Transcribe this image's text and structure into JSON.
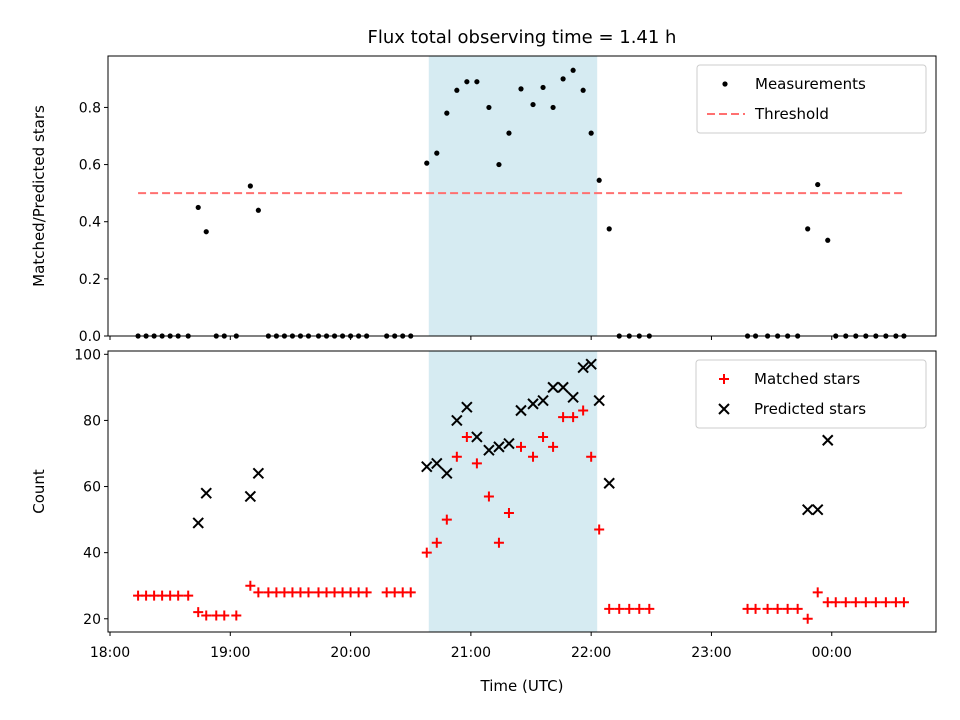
{
  "chart_data": [
    {
      "type": "scatter",
      "title": "Flux total observing time = 1.41 h",
      "ylabel": "Matched/Predicted stars",
      "xlabel": "",
      "ylim": [
        0,
        0.98
      ],
      "xlim": [
        "17:59",
        "24:52"
      ],
      "yticks": [
        0.0,
        0.2,
        0.4,
        0.6,
        0.8
      ],
      "ytick_labels": [
        "0.0",
        "0.2",
        "0.4",
        "0.6",
        "0.8"
      ],
      "shaded_interval": {
        "from": "20:39",
        "to": "22:03",
        "color": "#add8e6"
      },
      "legend": {
        "position": "top-right",
        "entries": [
          "Measurements",
          "Threshold"
        ]
      },
      "series": [
        {
          "name": "Measurements",
          "color": "#000000",
          "marker": "dot",
          "points": [
            [
              "18:14",
              0
            ],
            [
              "18:18",
              0
            ],
            [
              "18:22",
              0
            ],
            [
              "18:26",
              0
            ],
            [
              "18:30",
              0
            ],
            [
              "18:34",
              0
            ],
            [
              "18:39",
              0
            ],
            [
              "18:44",
              0.45
            ],
            [
              "18:48",
              0.365
            ],
            [
              "18:53",
              0
            ],
            [
              "18:57",
              0
            ],
            [
              "19:03",
              0
            ],
            [
              "19:10",
              0.525
            ],
            [
              "19:14",
              0.44
            ],
            [
              "19:19",
              0
            ],
            [
              "19:23",
              0
            ],
            [
              "19:27",
              0
            ],
            [
              "19:31",
              0
            ],
            [
              "19:35",
              0
            ],
            [
              "19:39",
              0
            ],
            [
              "19:44",
              0
            ],
            [
              "19:48",
              0
            ],
            [
              "19:52",
              0
            ],
            [
              "19:56",
              0
            ],
            [
              "20:00",
              0
            ],
            [
              "20:04",
              0
            ],
            [
              "20:08",
              0
            ],
            [
              "20:18",
              0
            ],
            [
              "20:22",
              0
            ],
            [
              "20:26",
              0
            ],
            [
              "20:30",
              0
            ],
            [
              "20:38",
              0.605
            ],
            [
              "20:43",
              0.64
            ],
            [
              "20:48",
              0.78
            ],
            [
              "20:53",
              0.86
            ],
            [
              "20:58",
              0.89
            ],
            [
              "21:03",
              0.89
            ],
            [
              "21:09",
              0.8
            ],
            [
              "21:14",
              0.6
            ],
            [
              "21:19",
              0.71
            ],
            [
              "21:25",
              0.865
            ],
            [
              "21:31",
              0.81
            ],
            [
              "21:36",
              0.87
            ],
            [
              "21:41",
              0.8
            ],
            [
              "21:46",
              0.9
            ],
            [
              "21:51",
              0.93
            ],
            [
              "21:56",
              0.86
            ],
            [
              "22:00",
              0.71
            ],
            [
              "22:04",
              0.545
            ],
            [
              "22:09",
              0.375
            ],
            [
              "22:14",
              0
            ],
            [
              "22:19",
              0
            ],
            [
              "22:24",
              0
            ],
            [
              "22:29",
              0
            ],
            [
              "23:18",
              0
            ],
            [
              "23:22",
              0
            ],
            [
              "23:28",
              0
            ],
            [
              "23:33",
              0
            ],
            [
              "23:38",
              0
            ],
            [
              "23:43",
              0
            ],
            [
              "23:48",
              0.375
            ],
            [
              "23:53",
              0.53
            ],
            [
              "23:58",
              0.335
            ],
            [
              "24:02",
              0
            ],
            [
              "24:07",
              0
            ],
            [
              "24:12",
              0
            ],
            [
              "24:17",
              0
            ],
            [
              "24:22",
              0
            ],
            [
              "24:27",
              0
            ],
            [
              "24:32",
              0
            ],
            [
              "24:36",
              0
            ]
          ]
        },
        {
          "name": "Threshold",
          "color": "#ff7070",
          "style": "dashed",
          "points": [
            [
              "18:14",
              0.5
            ],
            [
              "24:36",
              0.5
            ]
          ]
        }
      ]
    },
    {
      "type": "scatter",
      "title": "",
      "ylabel": "Count",
      "xlabel": "Time (UTC)",
      "ylim": [
        16,
        101
      ],
      "xlim": [
        "17:59",
        "24:52"
      ],
      "yticks": [
        20,
        40,
        60,
        80,
        100
      ],
      "ytick_labels": [
        "20",
        "40",
        "60",
        "80",
        "100"
      ],
      "xticks": [
        "18:00",
        "19:00",
        "20:00",
        "21:00",
        "22:00",
        "23:00",
        "24:00"
      ],
      "xtick_labels": [
        "18:00",
        "19:00",
        "20:00",
        "21:00",
        "22:00",
        "23:00",
        "00:00"
      ],
      "shaded_interval": {
        "from": "20:39",
        "to": "22:03",
        "color": "#add8e6"
      },
      "legend": {
        "position": "top-right",
        "entries": [
          "Matched stars",
          "Predicted stars"
        ]
      },
      "series": [
        {
          "name": "Matched stars",
          "color": "#ff0000",
          "marker": "plus",
          "points": [
            [
              "18:14",
              27
            ],
            [
              "18:18",
              27
            ],
            [
              "18:22",
              27
            ],
            [
              "18:26",
              27
            ],
            [
              "18:30",
              27
            ],
            [
              "18:34",
              27
            ],
            [
              "18:39",
              27
            ],
            [
              "18:44",
              22
            ],
            [
              "18:48",
              21
            ],
            [
              "18:53",
              21
            ],
            [
              "18:57",
              21
            ],
            [
              "19:03",
              21
            ],
            [
              "19:10",
              30
            ],
            [
              "19:14",
              28
            ],
            [
              "19:19",
              28
            ],
            [
              "19:23",
              28
            ],
            [
              "19:27",
              28
            ],
            [
              "19:31",
              28
            ],
            [
              "19:35",
              28
            ],
            [
              "19:39",
              28
            ],
            [
              "19:44",
              28
            ],
            [
              "19:48",
              28
            ],
            [
              "19:52",
              28
            ],
            [
              "19:56",
              28
            ],
            [
              "20:00",
              28
            ],
            [
              "20:04",
              28
            ],
            [
              "20:08",
              28
            ],
            [
              "20:18",
              28
            ],
            [
              "20:22",
              28
            ],
            [
              "20:26",
              28
            ],
            [
              "20:30",
              28
            ],
            [
              "20:38",
              40
            ],
            [
              "20:43",
              43
            ],
            [
              "20:48",
              50
            ],
            [
              "20:53",
              69
            ],
            [
              "20:58",
              75
            ],
            [
              "21:03",
              67
            ],
            [
              "21:09",
              57
            ],
            [
              "21:14",
              43
            ],
            [
              "21:19",
              52
            ],
            [
              "21:25",
              72
            ],
            [
              "21:31",
              69
            ],
            [
              "21:36",
              75
            ],
            [
              "21:41",
              72
            ],
            [
              "21:46",
              81
            ],
            [
              "21:51",
              81
            ],
            [
              "21:56",
              83
            ],
            [
              "22:00",
              69
            ],
            [
              "22:04",
              47
            ],
            [
              "22:09",
              23
            ],
            [
              "22:14",
              23
            ],
            [
              "22:19",
              23
            ],
            [
              "22:24",
              23
            ],
            [
              "22:29",
              23
            ],
            [
              "23:18",
              23
            ],
            [
              "23:22",
              23
            ],
            [
              "23:28",
              23
            ],
            [
              "23:33",
              23
            ],
            [
              "23:38",
              23
            ],
            [
              "23:43",
              23
            ],
            [
              "23:48",
              20
            ],
            [
              "23:53",
              28
            ],
            [
              "23:58",
              25
            ],
            [
              "24:02",
              25
            ],
            [
              "24:07",
              25
            ],
            [
              "24:12",
              25
            ],
            [
              "24:17",
              25
            ],
            [
              "24:22",
              25
            ],
            [
              "24:27",
              25
            ],
            [
              "24:32",
              25
            ],
            [
              "24:36",
              25
            ]
          ]
        },
        {
          "name": "Predicted stars",
          "color": "#000000",
          "marker": "x",
          "points": [
            [
              "18:44",
              49
            ],
            [
              "18:48",
              58
            ],
            [
              "19:10",
              57
            ],
            [
              "19:14",
              64
            ],
            [
              "20:38",
              66
            ],
            [
              "20:43",
              67
            ],
            [
              "20:48",
              64
            ],
            [
              "20:53",
              80
            ],
            [
              "20:58",
              84
            ],
            [
              "21:03",
              75
            ],
            [
              "21:09",
              71
            ],
            [
              "21:14",
              72
            ],
            [
              "21:19",
              73
            ],
            [
              "21:25",
              83
            ],
            [
              "21:31",
              85
            ],
            [
              "21:36",
              86
            ],
            [
              "21:41",
              90
            ],
            [
              "21:46",
              90
            ],
            [
              "21:51",
              87
            ],
            [
              "21:56",
              96
            ],
            [
              "22:00",
              97
            ],
            [
              "22:04",
              86
            ],
            [
              "22:09",
              61
            ],
            [
              "23:48",
              53
            ],
            [
              "23:53",
              53
            ],
            [
              "23:58",
              74
            ]
          ]
        }
      ]
    }
  ]
}
